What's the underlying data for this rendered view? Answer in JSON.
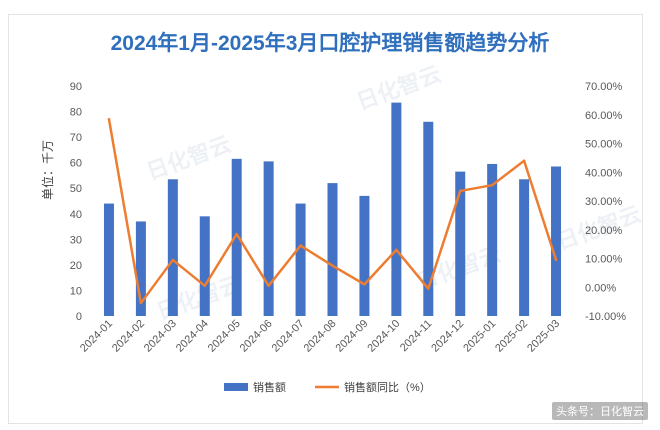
{
  "chart_data": {
    "type": "bar",
    "title": "2024年1月-2025年3月口腔护理销售额趋势分析",
    "ylabel": "单位：千万",
    "categories": [
      "2024-01",
      "2024-02",
      "2024-03",
      "2024-04",
      "2024-05",
      "2024-06",
      "2024-07",
      "2024-08",
      "2024-09",
      "2024-10",
      "2024-11",
      "2024-12",
      "2025-01",
      "2025-02",
      "2025-03"
    ],
    "series": [
      {
        "name": "销售额",
        "axis": "left",
        "type": "bar",
        "color": "#4472c4",
        "values": [
          44,
          37,
          53.5,
          39,
          61.5,
          60.5,
          44,
          52,
          47,
          83.5,
          76,
          56.5,
          59.5,
          53.5,
          58.5
        ]
      },
      {
        "name": "销售额同比（%）",
        "axis": "right",
        "type": "line",
        "color": "#ed7d31",
        "values": [
          58.5,
          -5.5,
          9.5,
          0.5,
          18.5,
          0.5,
          14.5,
          7.5,
          1.0,
          13.0,
          -0.5,
          33.5,
          35.5,
          44.0,
          9.5
        ]
      }
    ],
    "ylim": [
      0,
      90
    ],
    "y_ticks": [
      0,
      10,
      20,
      30,
      40,
      50,
      60,
      70,
      80,
      90
    ],
    "y2lim": [
      -10,
      70
    ],
    "y2_ticks": [
      "-10.00%",
      "0.00%",
      "10.00%",
      "20.00%",
      "30.00%",
      "40.00%",
      "50.00%",
      "60.00%",
      "70.00%"
    ],
    "legend_position": "bottom",
    "grid": false
  },
  "credit": "头条号：日化智云",
  "watermark": "日化智云"
}
